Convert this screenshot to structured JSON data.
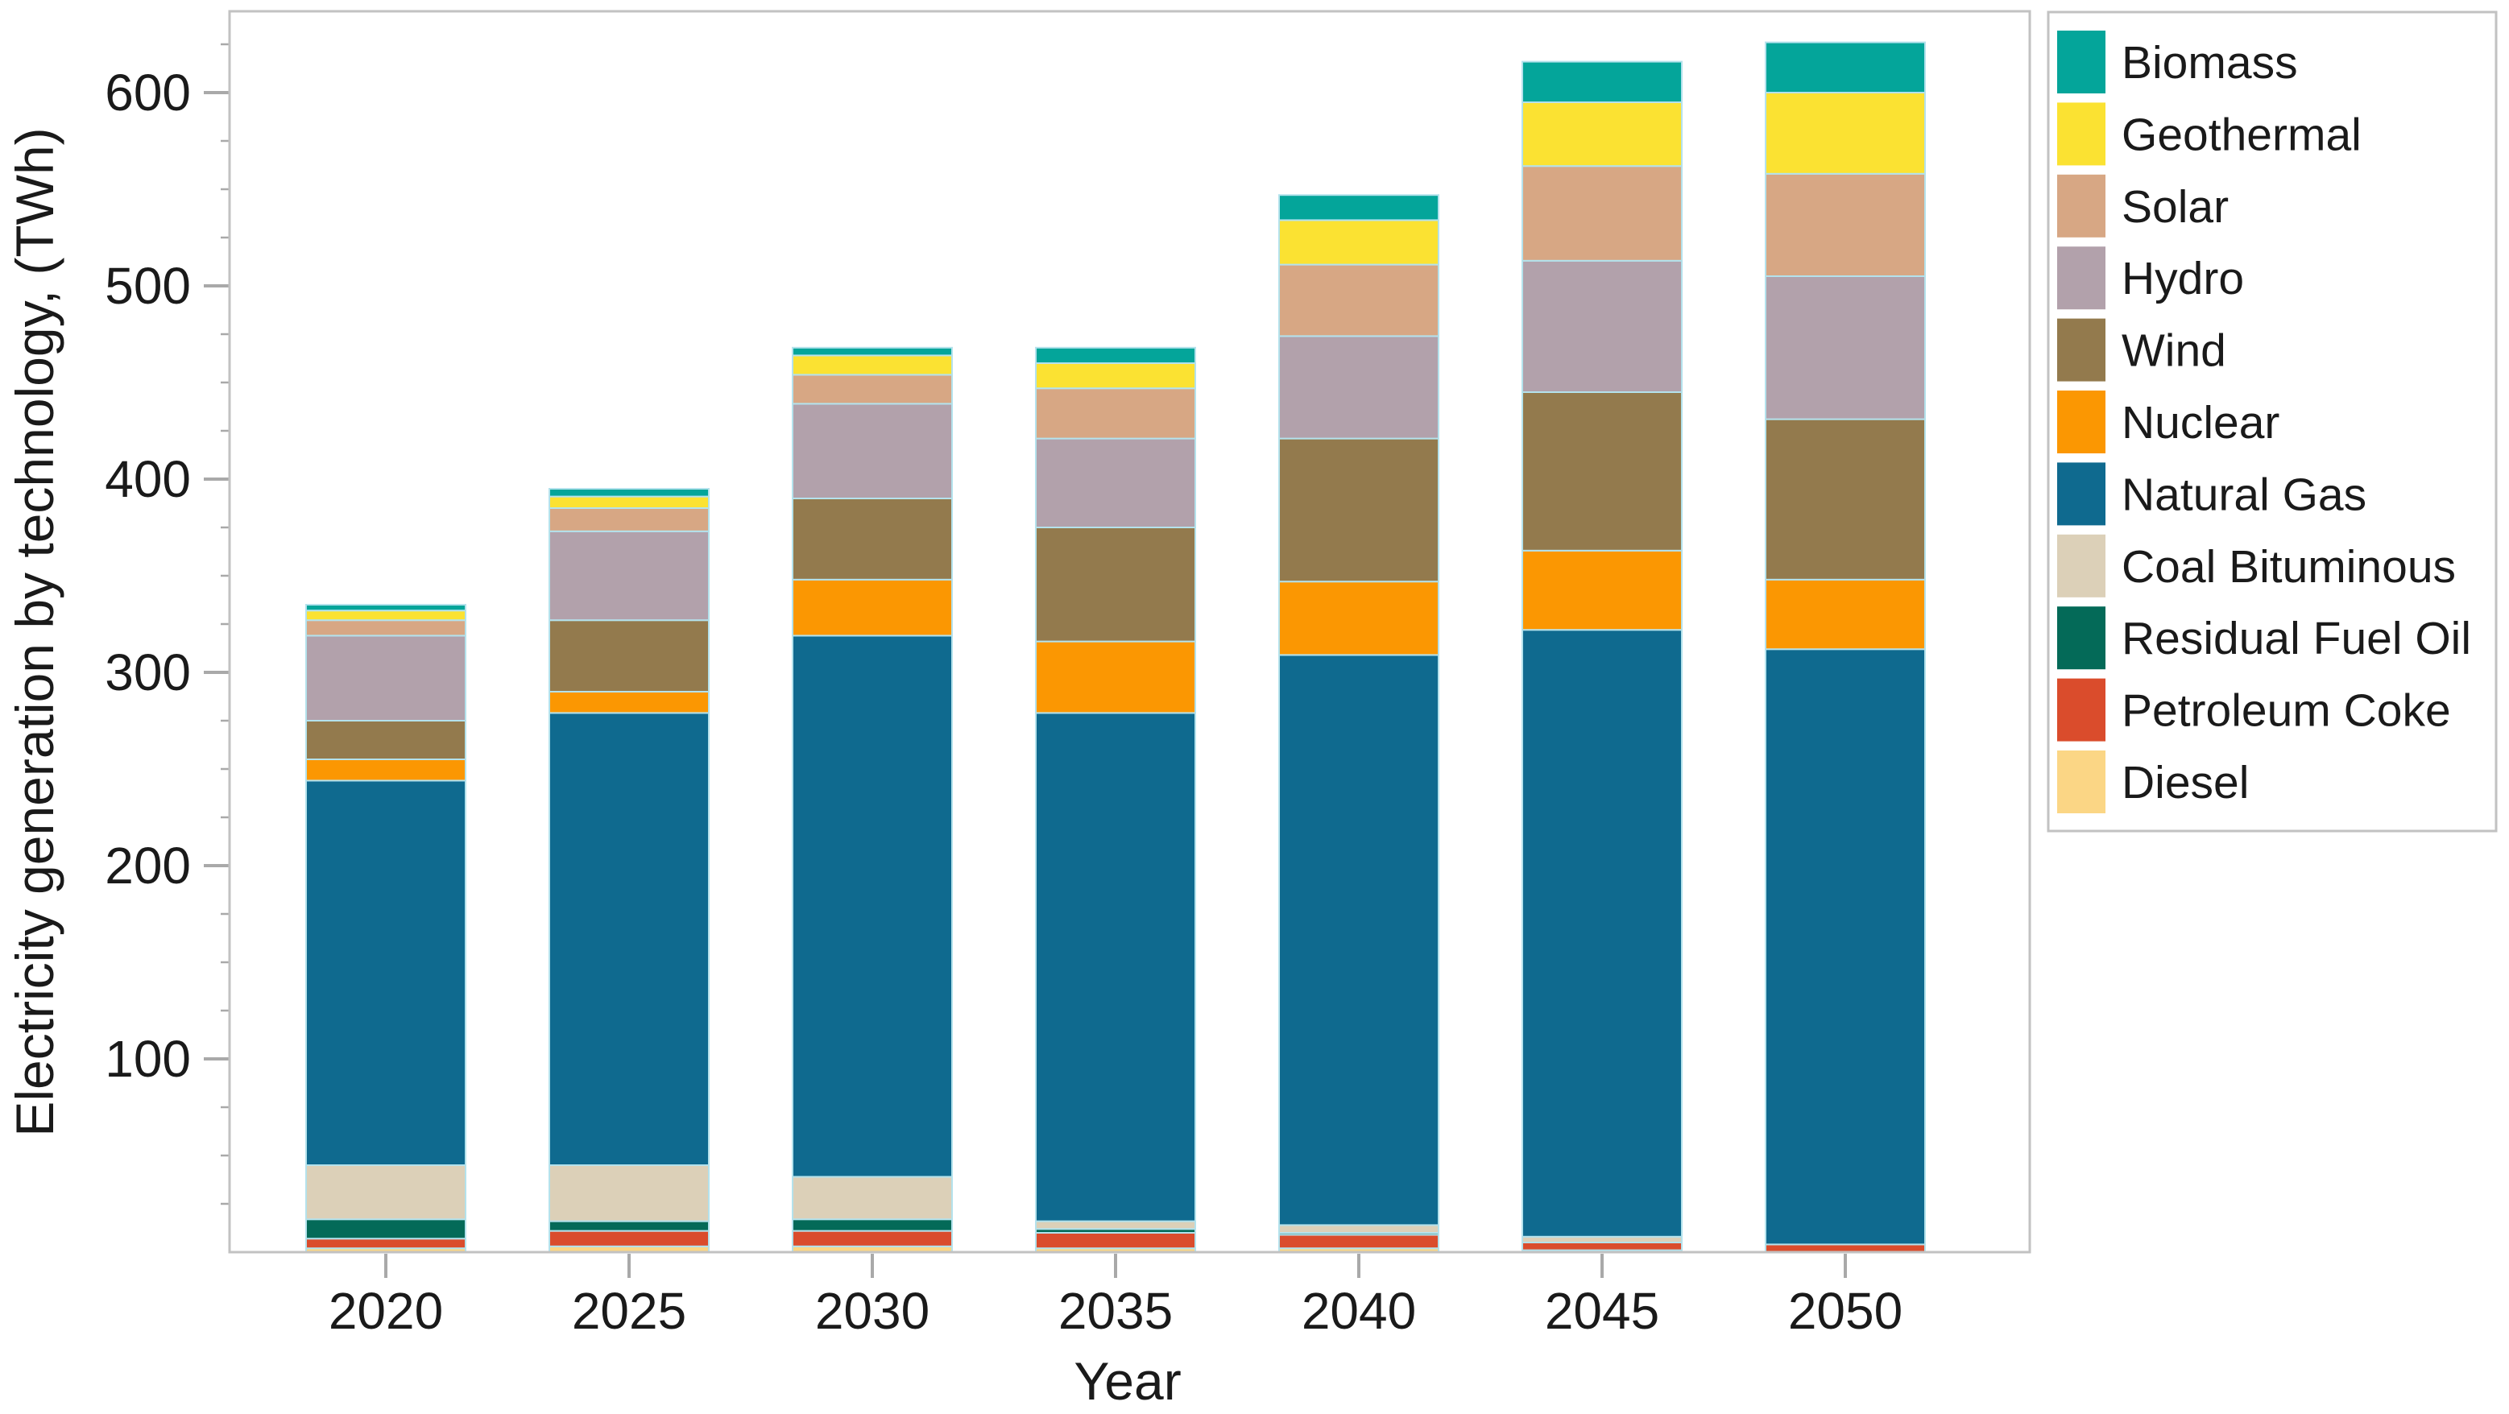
{
  "chart_data": {
    "type": "bar",
    "stacked": true,
    "title": "",
    "xlabel": "Year",
    "ylabel": "Electricity generation by technology, (TWh)",
    "unit": "TWh",
    "categories": [
      "2020",
      "2025",
      "2030",
      "2035",
      "2040",
      "2045",
      "2050"
    ],
    "series": [
      {
        "name": "Biomass",
        "color": "#04a59a",
        "values": [
          3,
          4,
          4,
          8,
          13,
          21,
          26
        ]
      },
      {
        "name": "Geothermal",
        "color": "#fbe232",
        "values": [
          5,
          6,
          10,
          13,
          23,
          33,
          42
        ]
      },
      {
        "name": "Solar",
        "color": "#d7a784",
        "values": [
          8,
          12,
          15,
          26,
          37,
          49,
          53
        ]
      },
      {
        "name": "Hydro",
        "color": "#b2a1ab",
        "values": [
          44,
          46,
          49,
          46,
          53,
          68,
          74
        ]
      },
      {
        "name": "Wind",
        "color": "#937a4d",
        "values": [
          20,
          37,
          42,
          59,
          74,
          82,
          83
        ]
      },
      {
        "name": "Nuclear",
        "color": "#fb9702",
        "values": [
          11,
          11,
          29,
          37,
          38,
          41,
          36
        ]
      },
      {
        "name": "Natural Gas",
        "color": "#0f6a8f",
        "values": [
          199,
          234,
          280,
          263,
          295,
          314,
          308
        ]
      },
      {
        "name": "Coal Bituminous",
        "color": "#dcd0b8",
        "values": [
          28,
          29,
          22,
          4,
          4,
          3,
          0
        ]
      },
      {
        "name": "Residual Fuel Oil",
        "color": "#046a58",
        "values": [
          10,
          5,
          6,
          2,
          1,
          0,
          0
        ]
      },
      {
        "name": "Petroleum Coke",
        "color": "#da4c2c",
        "values": [
          5,
          8,
          8,
          8,
          7,
          4,
          4
        ]
      },
      {
        "name": "Diesel",
        "color": "#fbd685",
        "values": [
          2,
          3,
          3,
          2,
          2,
          1,
          0
        ]
      }
    ],
    "stack_order_bottom_to_top": [
      "Diesel",
      "Petroleum Coke",
      "Residual Fuel Oil",
      "Coal Bituminous",
      "Natural Gas",
      "Nuclear",
      "Wind",
      "Hydro",
      "Solar",
      "Geothermal",
      "Biomass"
    ],
    "bar_totals": [
      335,
      395,
      468,
      468,
      547,
      616,
      626
    ],
    "y_axis": {
      "min": 0,
      "max": 650,
      "major_tick_interval": 100,
      "minor_tick_interval": 25,
      "major_tick_labels": [
        "100",
        "200",
        "300",
        "400",
        "500",
        "600"
      ]
    },
    "x_axis": {
      "tick_labels": [
        "2020",
        "2025",
        "2030",
        "2035",
        "2040",
        "2045",
        "2050"
      ]
    },
    "legend": {
      "position": "outside-top-right",
      "items_top_to_bottom": [
        "Biomass",
        "Geothermal",
        "Solar",
        "Hydro",
        "Wind",
        "Nuclear",
        "Natural Gas",
        "Coal Bituminous",
        "Residual Fuel Oil",
        "Petroleum Coke",
        "Diesel"
      ]
    },
    "style_colors": {
      "axis_border": "#c2c2c2",
      "tick": "#a9a9a9",
      "text": "#1a1a1a",
      "background": "#ffffff",
      "segment_edge": "#b4e2ec"
    }
  }
}
